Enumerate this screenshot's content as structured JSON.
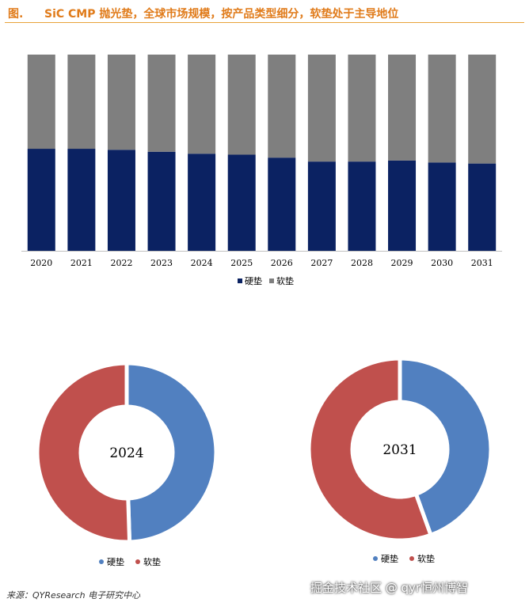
{
  "figure": {
    "label": "图.",
    "title": "SiC CMP 抛光垫，全球市场规模，按产品类型细分，软垫处于主导地位"
  },
  "colors": {
    "hard_bar": "#0b2262",
    "soft_bar": "#7f7f7f",
    "hard_pie": "#5180c0",
    "soft_pie": "#c0504d"
  },
  "chart_data": [
    {
      "type": "bar",
      "stacked": true,
      "normalized": true,
      "categories": [
        "2020",
        "2021",
        "2022",
        "2023",
        "2024",
        "2025",
        "2026",
        "2027",
        "2028",
        "2029",
        "2030",
        "2031"
      ],
      "series": [
        {
          "name": "硬垫",
          "values": [
            52,
            52,
            51.5,
            50.5,
            49.5,
            49,
            47.5,
            45.5,
            45.5,
            46,
            45,
            44.5
          ]
        },
        {
          "name": "软垫",
          "values": [
            48,
            48,
            48.5,
            49.5,
            50.5,
            51,
            52.5,
            54.5,
            54.5,
            54,
            55,
            55.5
          ]
        }
      ],
      "ylim": [
        0,
        100
      ],
      "legend": "bottom",
      "grid": false
    },
    {
      "type": "pie",
      "donut": true,
      "center_label": "2024",
      "labels": [
        "硬垫",
        "软垫"
      ],
      "values": [
        49.5,
        50.5
      ],
      "legend": "bottom"
    },
    {
      "type": "pie",
      "donut": true,
      "center_label": "2031",
      "labels": [
        "硬垫",
        "软垫"
      ],
      "values": [
        44.5,
        55.5
      ],
      "legend": "bottom"
    }
  ],
  "source": "来源：QYResearch 电子研究中心",
  "brand": "掘金技术社区 @ qyr恒州博智"
}
